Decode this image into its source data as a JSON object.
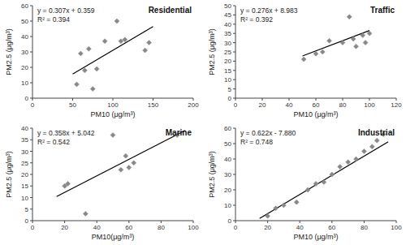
{
  "chart_data": [
    {
      "type": "scatter",
      "title": "Residential",
      "xlabel": "PM10 (μg/m³)",
      "ylabel": "PM2.5 (μg/m³)",
      "annotations": [
        "y = 0.307x + 0.359",
        "R² = 0.394"
      ],
      "xlim": [
        0,
        200
      ],
      "ylim": [
        0,
        60
      ],
      "xticks": [
        0,
        50,
        100,
        150,
        200
      ],
      "yticks": [
        0,
        10,
        20,
        30,
        40,
        50,
        60
      ],
      "grid": false,
      "series": [
        {
          "type": "scatter",
          "color": "#888888",
          "marker": "diamond",
          "x": [
            55,
            60,
            65,
            70,
            75,
            80,
            90,
            105,
            110,
            115,
            140,
            145
          ],
          "values": [
            9,
            29,
            18,
            32,
            6,
            19,
            37,
            50,
            37,
            38,
            31,
            36
          ]
        },
        {
          "type": "line",
          "color": "black",
          "line_style": "solid",
          "x": [
            50,
            150
          ],
          "values": [
            15.709,
            46.409
          ]
        }
      ]
    },
    {
      "type": "scatter",
      "title": "Traffic",
      "xlabel": "PM10 (μg/m³)",
      "ylabel": "PM2.5 (μg/m³)",
      "annotations": [
        "y = 0.276x + 8.983",
        "R² = 0.392"
      ],
      "xlim": [
        0,
        120
      ],
      "ylim": [
        0,
        50
      ],
      "xticks": [
        0,
        20,
        40,
        60,
        80,
        100,
        120
      ],
      "yticks": [
        0,
        5,
        10,
        15,
        20,
        25,
        30,
        35,
        40,
        45,
        50
      ],
      "grid": false,
      "series": [
        {
          "type": "scatter",
          "color": "#888888",
          "marker": "diamond",
          "x": [
            51,
            60,
            65,
            70,
            80,
            85,
            88,
            90,
            95,
            97,
            100
          ],
          "values": [
            21,
            24,
            25,
            31,
            30,
            44,
            32,
            28,
            34,
            30,
            35
          ]
        },
        {
          "type": "line",
          "color": "black",
          "line_style": "solid",
          "x": [
            50,
            100
          ],
          "values": [
            22.783,
            36.583
          ]
        }
      ]
    },
    {
      "type": "scatter",
      "title": "Marine",
      "xlabel": "PM10(μg/m³)",
      "ylabel": "PM2.5 (μg/m³)",
      "annotations": [
        "y = 0.358x + 5.042",
        "R² = 0.542"
      ],
      "xlim": [
        0,
        100
      ],
      "ylim": [
        0,
        40
      ],
      "xticks": [
        0,
        20,
        40,
        60,
        80,
        100
      ],
      "yticks": [
        0,
        5,
        10,
        15,
        20,
        25,
        30,
        35,
        40
      ],
      "grid": false,
      "series": [
        {
          "type": "scatter",
          "color": "#888888",
          "marker": "diamond",
          "x": [
            20,
            22,
            33,
            50,
            55,
            58,
            60,
            63,
            90
          ],
          "values": [
            15,
            16,
            3,
            37,
            22,
            28,
            23,
            25,
            37
          ]
        },
        {
          "type": "line",
          "color": "black",
          "line_style": "solid",
          "x": [
            15,
            95
          ],
          "values": [
            10.412,
            39.052
          ]
        }
      ]
    },
    {
      "type": "scatter",
      "title": "Industrial",
      "xlabel": "PM10 (μg/m³)",
      "ylabel": "PM2.5 (μg/m³)",
      "annotations": [
        "y = 0.622x - 7.880",
        "R² = 0.748"
      ],
      "xlim": [
        0,
        100
      ],
      "ylim": [
        0,
        60
      ],
      "xticks": [
        0,
        20,
        40,
        60,
        80,
        100
      ],
      "yticks": [
        0,
        10,
        20,
        30,
        40,
        50,
        60
      ],
      "grid": false,
      "series": [
        {
          "type": "scatter",
          "color": "#888888",
          "marker": "diamond",
          "x": [
            20,
            25,
            30,
            38,
            45,
            50,
            55,
            60,
            65,
            70,
            75,
            80,
            85,
            88,
            92
          ],
          "values": [
            3,
            8,
            10,
            12,
            20,
            24,
            25,
            30,
            35,
            38,
            40,
            45,
            48,
            52,
            56
          ]
        },
        {
          "type": "line",
          "color": "black",
          "line_style": "solid",
          "x": [
            15,
            95
          ],
          "values": [
            1.45,
            51.21
          ]
        }
      ]
    }
  ]
}
